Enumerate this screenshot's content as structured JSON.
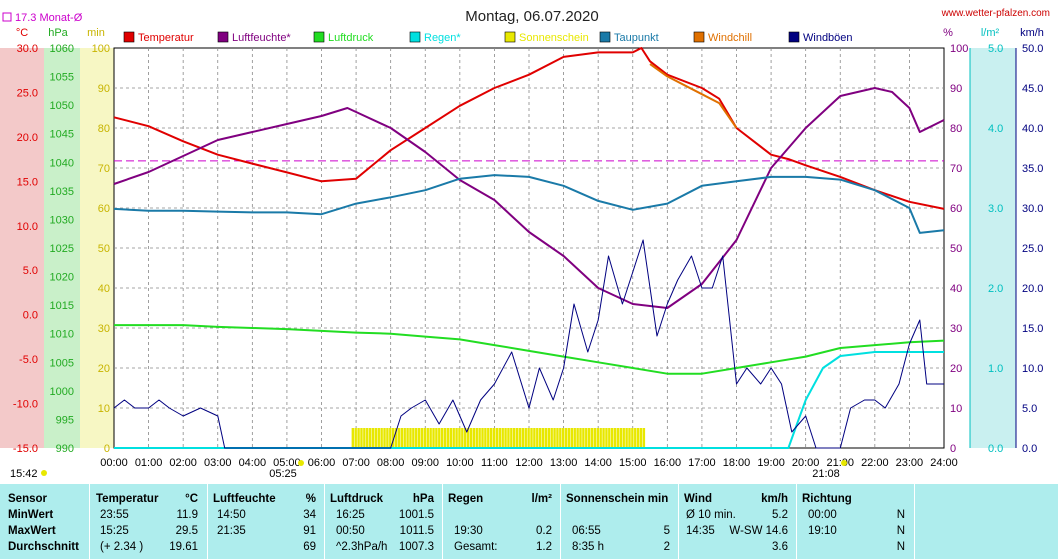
{
  "header": {
    "title": "Montag, 06.07.2020",
    "site": "www.wetter-pfalzen.com",
    "monthly_avg_label": "17.3 Monat-Ø",
    "monthly_avg_value": 17.3,
    "time_start": "15:42",
    "sunrise": "05:25",
    "sunset": "21:08"
  },
  "axes": {
    "temp_unit": "°C",
    "pressure_unit": "hPa",
    "sun_unit": "min",
    "hum_unit": "%",
    "rain_unit": "l/m²",
    "wind_unit": "km/h",
    "temp_ticks": [
      "30.0",
      "25.0",
      "20.0",
      "15.0",
      "10.0",
      "5.0",
      "0.0",
      "-5.0",
      "-10.0",
      "-15.0"
    ],
    "pressure_ticks": [
      "1060",
      "1055",
      "1050",
      "1045",
      "1040",
      "1035",
      "1030",
      "1025",
      "1020",
      "1015",
      "1010",
      "1005",
      "1000",
      "995",
      "990"
    ],
    "sun_ticks": [
      "100",
      "90",
      "80",
      "70",
      "60",
      "50",
      "40",
      "30",
      "20",
      "10",
      "0"
    ],
    "hum_ticks": [
      "100",
      "90",
      "80",
      "70",
      "60",
      "50",
      "40",
      "30",
      "20",
      "10",
      "0"
    ],
    "rain_ticks": [
      "5.0",
      "4.0",
      "3.0",
      "2.0",
      "1.0",
      "0.0"
    ],
    "wind_ticks": [
      "50.0",
      "45.0",
      "40.0",
      "35.0",
      "30.0",
      "25.0",
      "20.0",
      "15.0",
      "10.0",
      "5.0",
      "0.0"
    ],
    "x_ticks": [
      "00:00",
      "01:00",
      "02:00",
      "03:00",
      "04:00",
      "05:00",
      "06:00",
      "07:00",
      "08:00",
      "09:00",
      "10:00",
      "11:00",
      "12:00",
      "13:00",
      "14:00",
      "15:00",
      "16:00",
      "17:00",
      "18:00",
      "19:00",
      "20:00",
      "21:00",
      "22:00",
      "23:00",
      "24:00"
    ]
  },
  "chart_data": {
    "type": "line",
    "title": "Montag, 06.07.2020",
    "x_range": [
      "00:00",
      "24:00"
    ],
    "temp_range": [
      -15,
      30
    ],
    "pressure_range": [
      990,
      1060
    ],
    "percent_range": [
      0,
      100
    ],
    "rain_range": [
      0,
      5
    ],
    "wind_range": [
      0,
      50
    ],
    "legend": [
      {
        "name": "Temperatur",
        "color": "#e00000"
      },
      {
        "name": "Luftfeuchte*",
        "color": "#800080"
      },
      {
        "name": "Luftdruck",
        "color": "#22dd22"
      },
      {
        "name": "Regen*",
        "color": "#00e0e0"
      },
      {
        "name": "Sonnenschein",
        "color": "#e8e800"
      },
      {
        "name": "Taupunkt",
        "color": "#1a7aa8"
      },
      {
        "name": "Windchill",
        "color": "#e07000"
      },
      {
        "name": "Windböen",
        "color": "#000080"
      }
    ],
    "series": [
      {
        "name": "Temperatur",
        "axis": "temp",
        "color": "#e00000",
        "points": [
          [
            0,
            22.2
          ],
          [
            1,
            21.2
          ],
          [
            2,
            19.5
          ],
          [
            3,
            18.0
          ],
          [
            4,
            17.0
          ],
          [
            5,
            16.0
          ],
          [
            6,
            15.0
          ],
          [
            7,
            15.3
          ],
          [
            8,
            18.5
          ],
          [
            9,
            21.0
          ],
          [
            10,
            23.5
          ],
          [
            11,
            25.5
          ],
          [
            12,
            27.0
          ],
          [
            13,
            29.0
          ],
          [
            14,
            29.5
          ],
          [
            15,
            29.5
          ],
          [
            15.25,
            30.0
          ],
          [
            15.5,
            28.5
          ],
          [
            16,
            27.0
          ],
          [
            17,
            25.5
          ],
          [
            17.5,
            24.3
          ],
          [
            18,
            21.0
          ],
          [
            19,
            18.0
          ],
          [
            19.5,
            17.5
          ],
          [
            20,
            16.8
          ],
          [
            21,
            15.5
          ],
          [
            22,
            14.0
          ],
          [
            23,
            12.7
          ],
          [
            24,
            11.9
          ]
        ]
      },
      {
        "name": "Luftfeuchte*",
        "axis": "percent",
        "color": "#800080",
        "points": [
          [
            0,
            66
          ],
          [
            1,
            69
          ],
          [
            2,
            73
          ],
          [
            3,
            77
          ],
          [
            4,
            79
          ],
          [
            5,
            81
          ],
          [
            6,
            83
          ],
          [
            6.75,
            85
          ],
          [
            7,
            84
          ],
          [
            8,
            80
          ],
          [
            9,
            74
          ],
          [
            10,
            67
          ],
          [
            11,
            62
          ],
          [
            12,
            54
          ],
          [
            12.5,
            51
          ],
          [
            13,
            48
          ],
          [
            14,
            40
          ],
          [
            15,
            36
          ],
          [
            16,
            35
          ],
          [
            17,
            41
          ],
          [
            18,
            52
          ],
          [
            19,
            70
          ],
          [
            20,
            80
          ],
          [
            21,
            88
          ],
          [
            22,
            90
          ],
          [
            22.5,
            89
          ],
          [
            23,
            85
          ],
          [
            23.3,
            79
          ],
          [
            24,
            82
          ]
        ]
      },
      {
        "name": "Taupunkt",
        "axis": "temp",
        "color": "#1a7aa8",
        "points": [
          [
            0,
            11.9
          ],
          [
            1,
            11.7
          ],
          [
            2,
            11.7
          ],
          [
            3,
            11.6
          ],
          [
            4,
            11.5
          ],
          [
            5,
            11.5
          ],
          [
            6,
            11.3
          ],
          [
            7,
            12.5
          ],
          [
            8,
            13.2
          ],
          [
            9,
            14.0
          ],
          [
            10,
            15.3
          ],
          [
            11,
            15.7
          ],
          [
            12,
            15.5
          ],
          [
            13,
            14.5
          ],
          [
            14,
            12.8
          ],
          [
            15,
            11.8
          ],
          [
            16,
            12.5
          ],
          [
            17,
            14.5
          ],
          [
            18,
            15.0
          ],
          [
            19,
            15.5
          ],
          [
            20,
            15.5
          ],
          [
            21,
            15.2
          ],
          [
            22,
            14.0
          ],
          [
            23,
            12.0
          ],
          [
            23.3,
            9.2
          ],
          [
            24,
            9.5
          ]
        ]
      },
      {
        "name": "Windchill",
        "axis": "temp",
        "color": "#e07000",
        "points": [
          [
            15.5,
            28.2
          ],
          [
            16,
            26.8
          ],
          [
            17,
            24.8
          ],
          [
            17.5,
            23.8
          ],
          [
            18,
            21.0
          ]
        ]
      },
      {
        "name": "Luftdruck",
        "axis": "pressure",
        "color": "#22dd22",
        "points": [
          [
            0,
            1011.5
          ],
          [
            1,
            1011.5
          ],
          [
            2,
            1011.5
          ],
          [
            3,
            1011.2
          ],
          [
            4,
            1011.0
          ],
          [
            5,
            1010.8
          ],
          [
            6,
            1010.5
          ],
          [
            7,
            1010.2
          ],
          [
            8,
            1010.0
          ],
          [
            9,
            1009.5
          ],
          [
            10,
            1009.0
          ],
          [
            11,
            1008.0
          ],
          [
            12,
            1007.0
          ],
          [
            13,
            1006.0
          ],
          [
            14,
            1005.0
          ],
          [
            15,
            1004.0
          ],
          [
            16,
            1003.0
          ],
          [
            17,
            1003.0
          ],
          [
            18,
            1004.0
          ],
          [
            19,
            1005.0
          ],
          [
            20,
            1006.0
          ],
          [
            21,
            1007.5
          ],
          [
            22,
            1008.0
          ],
          [
            23,
            1008.5
          ],
          [
            24,
            1008.8
          ]
        ]
      },
      {
        "name": "Regen*",
        "axis": "rain",
        "color": "#00e0e0",
        "points": [
          [
            0,
            0
          ],
          [
            19.5,
            0
          ],
          [
            19.75,
            0.3
          ],
          [
            20,
            0.6
          ],
          [
            20.5,
            1.0
          ],
          [
            21,
            1.15
          ],
          [
            22,
            1.2
          ],
          [
            24,
            1.2
          ]
        ]
      },
      {
        "name": "Windböen",
        "axis": "wind",
        "color": "#000080",
        "points": [
          [
            0,
            5
          ],
          [
            0.3,
            6
          ],
          [
            0.6,
            5
          ],
          [
            1,
            5
          ],
          [
            1.3,
            6
          ],
          [
            1.6,
            5
          ],
          [
            2,
            4
          ],
          [
            2.5,
            5
          ],
          [
            3,
            4
          ],
          [
            3.2,
            0
          ],
          [
            8,
            0
          ],
          [
            8.3,
            4
          ],
          [
            8.6,
            5
          ],
          [
            9,
            6
          ],
          [
            9.4,
            3
          ],
          [
            9.8,
            6
          ],
          [
            10.2,
            2
          ],
          [
            10.6,
            6
          ],
          [
            11,
            8
          ],
          [
            11.5,
            12
          ],
          [
            12,
            5
          ],
          [
            12.3,
            10
          ],
          [
            12.7,
            6
          ],
          [
            13,
            10
          ],
          [
            13.3,
            18
          ],
          [
            13.7,
            12
          ],
          [
            14,
            16
          ],
          [
            14.3,
            24
          ],
          [
            14.7,
            18
          ],
          [
            15,
            22
          ],
          [
            15.3,
            26
          ],
          [
            15.7,
            14
          ],
          [
            16,
            18
          ],
          [
            16.3,
            21
          ],
          [
            16.7,
            24
          ],
          [
            17,
            20
          ],
          [
            17.3,
            20
          ],
          [
            17.6,
            24
          ],
          [
            18,
            8
          ],
          [
            18.3,
            10
          ],
          [
            18.7,
            8
          ],
          [
            19,
            10
          ],
          [
            19.3,
            8
          ],
          [
            19.6,
            2
          ],
          [
            20,
            4
          ],
          [
            20.3,
            0
          ],
          [
            21,
            0
          ],
          [
            21.3,
            5
          ],
          [
            21.7,
            6
          ],
          [
            22,
            6
          ],
          [
            22.3,
            5
          ],
          [
            22.7,
            8
          ],
          [
            23,
            13
          ],
          [
            23.3,
            16
          ],
          [
            23.5,
            8
          ],
          [
            24,
            8
          ]
        ]
      }
    ],
    "sunshine_window": [
      6.9,
      15.4
    ],
    "sunshine_level_min": 5
  },
  "stats": {
    "headers": {
      "sensor": "Sensor",
      "temp": "Temperatur",
      "temp_unit": "°C",
      "hum": "Luftfeuchte",
      "hum_unit": "%",
      "press": "Luftdruck",
      "press_unit": "hPa",
      "rain": "Regen",
      "rain_unit": "l/m²",
      "sun": "Sonnenschein min",
      "wind": "Wind",
      "wind_unit": "km/h",
      "dir": "Richtung"
    },
    "rows": [
      {
        "label": "MinWert",
        "temp_time": "23:55",
        "temp_val": "11.9",
        "hum_time": "14:50",
        "hum_val": "34",
        "press_time": "16:25",
        "press_val": "1001.5",
        "rain_time": "",
        "rain_val": "",
        "sun_time": "",
        "sun_val": "",
        "wind_time": "Ø 10 min.",
        "wind_val": "5.2",
        "dir_time": "00:00",
        "dir_val": "N"
      },
      {
        "label": "MaxWert",
        "temp_time": "15:25",
        "temp_val": "29.5",
        "hum_time": "21:35",
        "hum_val": "91",
        "press_time": "00:50",
        "press_val": "1011.5",
        "rain_time": "19:30",
        "rain_val": "0.2",
        "sun_time": "06:55",
        "sun_val": "5",
        "wind_time": "14:35",
        "wind_val": "W-SW 14.6",
        "dir_time": "19:10",
        "dir_val": "N"
      },
      {
        "label": "Durchschnitt",
        "temp_time": "(+ 2.34 )",
        "temp_val": "19.61",
        "hum_time": "",
        "hum_val": "69",
        "press_time": "^2.3hPa/h",
        "press_val": "1007.3",
        "rain_time": "Gesamt:",
        "rain_val": "1.2",
        "sun_time": "8:35 h",
        "sun_val": "2",
        "wind_time": "",
        "wind_val": "3.6",
        "dir_time": "",
        "dir_val": "N"
      }
    ]
  }
}
